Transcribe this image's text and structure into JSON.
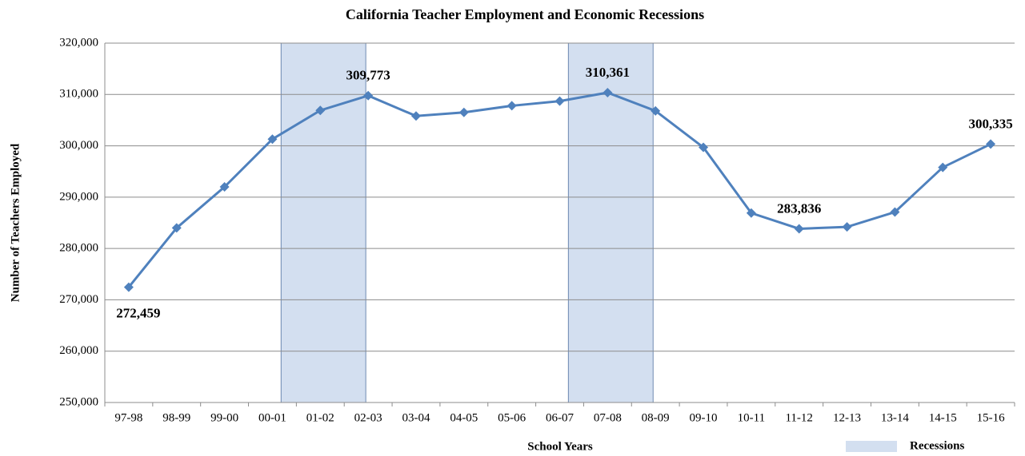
{
  "chart_data": {
    "type": "line",
    "title": "California Teacher Employment and Economic Recessions",
    "x_label": "School Years",
    "y_label": "Number of Teachers Employed",
    "categories": [
      "97-98",
      "98-99",
      "99-00",
      "00-01",
      "01-02",
      "02-03",
      "03-04",
      "04-05",
      "05-06",
      "06-07",
      "07-08",
      "08-09",
      "09-10",
      "10-11",
      "11-12",
      "12-13",
      "13-14",
      "14-15",
      "15-16"
    ],
    "series": [
      {
        "name": "Teachers Employed",
        "color": "#4f81bd",
        "values": [
          272459,
          284000,
          292000,
          301300,
          306900,
          309773,
          305800,
          306500,
          307800,
          308700,
          310361,
          306800,
          299700,
          286900,
          283836,
          284200,
          287100,
          295800,
          300335
        ],
        "value_labels": [
          "272,459",
          null,
          null,
          null,
          null,
          "309,773",
          null,
          null,
          null,
          null,
          "310,361",
          null,
          null,
          null,
          "283,836",
          null,
          null,
          null,
          "300,335"
        ]
      }
    ],
    "recessions": {
      "name": "Recessions",
      "color": "#d3dff0",
      "spans": [
        [
          "01-02",
          "02-03"
        ],
        [
          "07-08",
          "08-09"
        ]
      ]
    },
    "ylim": [
      250000,
      320000
    ],
    "yticks": [
      {
        "value": 250000,
        "label": "250,000"
      },
      {
        "value": 260000,
        "label": "260,000"
      },
      {
        "value": 270000,
        "label": "270,000"
      },
      {
        "value": 280000,
        "label": "280,000"
      },
      {
        "value": 290000,
        "label": "290,000"
      },
      {
        "value": 300000,
        "label": "300,000"
      },
      {
        "value": 310000,
        "label": "310,000"
      },
      {
        "value": 320000,
        "label": "320,000"
      }
    ],
    "grid": true,
    "legend": "bottom-right"
  }
}
